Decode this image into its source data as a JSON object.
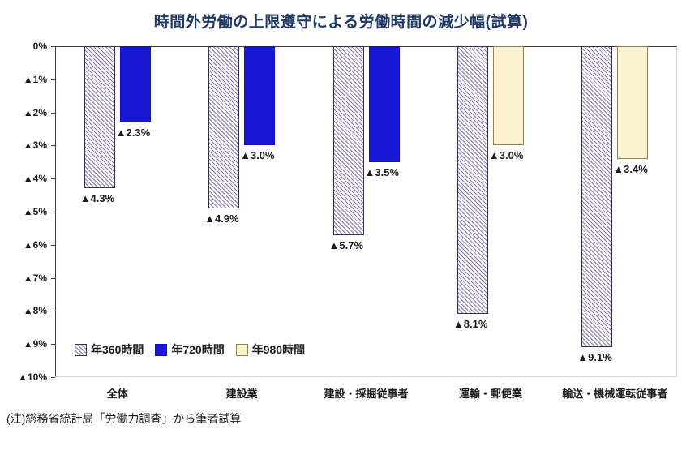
{
  "page": {
    "title": "時間外労働の上限遵守による労働時間の減少幅(試算)",
    "note": "(注)総務省統計局「労働力調査」から筆者試算"
  },
  "chart_data": {
    "type": "bar",
    "title": "時間外労働の上限遵守による労働時間の減少幅(試算)",
    "orientation": "vertical-hanging-negative",
    "categories": [
      "全体",
      "建設業",
      "建設・採掘従事者",
      "運輸・郵便業",
      "輸送・機械運転従事者"
    ],
    "series": [
      {
        "name": "年360時間",
        "pattern": "hatch",
        "color": "#8673B0",
        "border_color": "#2F2F5E",
        "values": [
          4.3,
          4.9,
          5.7,
          8.1,
          9.1
        ]
      },
      {
        "name": "年720時間",
        "pattern": "solid",
        "color": "#1717D5",
        "border_color": "#1212B8",
        "values": [
          2.3,
          3.0,
          3.5,
          null,
          null
        ]
      },
      {
        "name": "年980時間",
        "pattern": "solid",
        "color": "#FCF2CF",
        "border_color": "#95824B",
        "values": [
          null,
          null,
          null,
          3.0,
          3.4
        ]
      }
    ],
    "ylim": [
      0,
      -10
    ],
    "y_tick_labels": [
      "0%",
      "▲1%",
      "▲2%",
      "▲3%",
      "▲4%",
      "▲5%",
      "▲6%",
      "▲7%",
      "▲8%",
      "▲9%",
      "▲10%"
    ],
    "data_label_prefix": "▲",
    "data_label_suffix": "%",
    "grid": false,
    "legend_position": "inside-bottom-left",
    "title_color": "#203864"
  }
}
